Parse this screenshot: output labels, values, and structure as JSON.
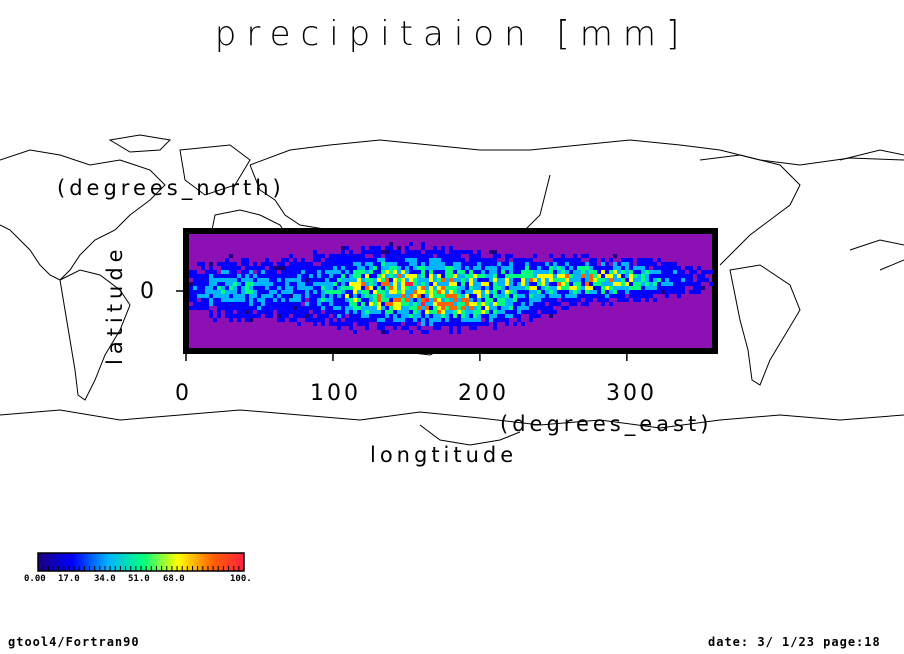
{
  "chart_data": {
    "type": "heatmap",
    "title": "precipitaion [mm]",
    "xlabel": "longtitude",
    "xunit": "(degrees_east)",
    "ylabel": "latitude",
    "yunit": "(degrees_north)",
    "x_ticks": [
      "0",
      "100",
      "200",
      "300"
    ],
    "y_ticks": [
      "0"
    ],
    "xlim": [
      0,
      360
    ],
    "ylim": [
      -30,
      30
    ],
    "colorbar": {
      "labels": [
        "0.00",
        "17.0",
        "34.0",
        "51.0",
        "68.0",
        "100."
      ],
      "range": [
        0,
        100
      ],
      "colors": [
        "#1a0080",
        "#0000ff",
        "#00b4ff",
        "#00ff80",
        "#ffff00",
        "#ff6000",
        "#ff2040"
      ]
    },
    "background_color": "#8c10b4",
    "rain_bands": [
      {
        "lon_center": 145,
        "lat_center": 2,
        "lon_width": 90,
        "lat_width": 22,
        "peak": 70
      },
      {
        "lon_center": 270,
        "lat_center": 7,
        "lon_width": 90,
        "lat_width": 12,
        "peak": 65
      },
      {
        "lon_center": 30,
        "lat_center": 2,
        "lon_width": 50,
        "lat_width": 18,
        "peak": 35
      },
      {
        "lon_center": 190,
        "lat_center": -8,
        "lon_width": 60,
        "lat_width": 10,
        "peak": 30
      }
    ]
  },
  "footer": {
    "left": "gtool4/Fortran90",
    "right": "date: 3/ 1/23 page:18"
  }
}
